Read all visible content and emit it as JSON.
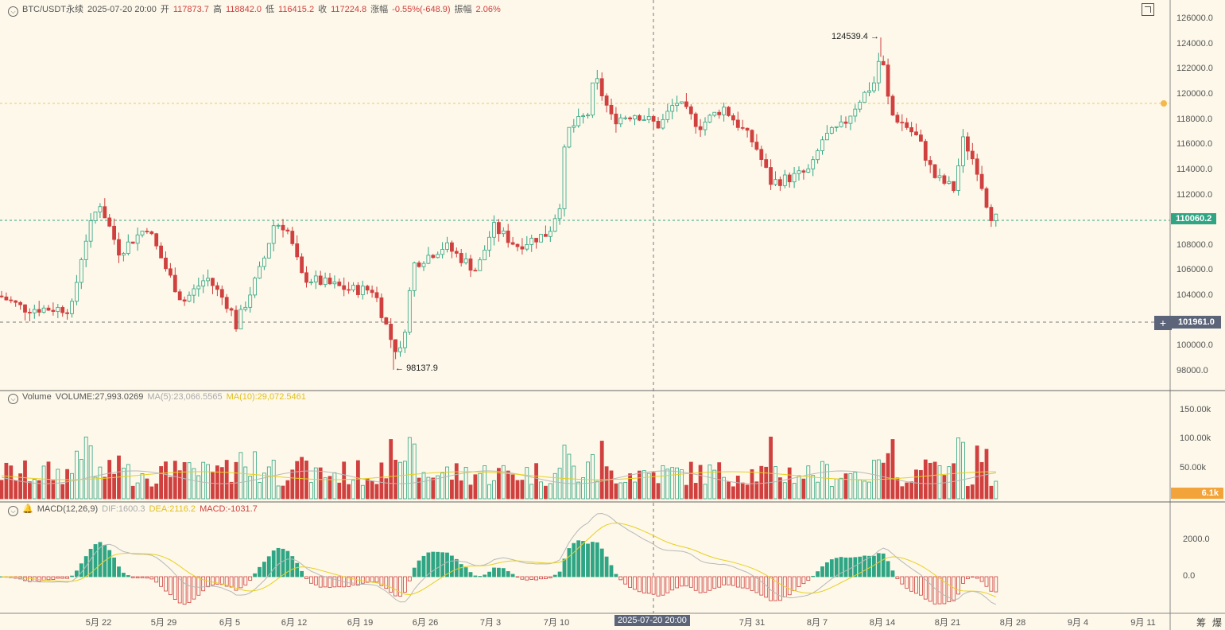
{
  "header": {
    "symbol": "BTC/USDT永续",
    "time": "2025-07-20 20:00",
    "open_label": "开",
    "open": "117873.7",
    "high_label": "高",
    "high": "118842.0",
    "low_label": "低",
    "low": "116415.2",
    "close_label": "收",
    "close": "117224.8",
    "change_label": "涨幅",
    "change": "-0.55%(-648.9)",
    "amp_label": "振幅",
    "amp": "2.06%"
  },
  "volume_header": {
    "name": "Volume",
    "volume": "VOLUME:27,993.0269",
    "ma5": "MA(5):23,066.5565",
    "ma10": "MA(10):29,072.5461"
  },
  "macd_header": {
    "name": "MACD(12,26,9)",
    "dif": "DIF:1600.3",
    "dea": "DEA:2116.2",
    "macd": "MACD:-1031.7"
  },
  "price_axis": [
    "126000.0",
    "124000.0",
    "122000.0",
    "120000.0",
    "118000.0",
    "116000.0",
    "114000.0",
    "112000.0",
    "110000.0",
    "108000.0",
    "106000.0",
    "104000.0",
    "102000.0",
    "100000.0",
    "98000.0"
  ],
  "volume_axis": [
    "150.00k",
    "100.00k",
    "50.00k"
  ],
  "macd_axis": [
    "2000.0",
    "0.0"
  ],
  "x_labels": [
    "5月 22",
    "5月 29",
    "6月 5",
    "6月 12",
    "6月 19",
    "6月 26",
    "7月 3",
    "7月 10",
    "7月 31",
    "8月 7",
    "8月 14",
    "8月 21",
    "8月 28",
    "9月 4",
    "9月 11"
  ],
  "crosshair_time": "2025-07-20 20:00",
  "last_price_tag": "110060.2",
  "cursor_price_tag": "101961.0",
  "volume_tag": "6.1k",
  "annotations": {
    "high": "124539.4",
    "low": "98137.9"
  },
  "bottom_buttons": [
    "筹",
    "爆"
  ],
  "colors": {
    "up": "#2fa584",
    "down": "#d0403f",
    "bg": "#fdf8ea",
    "ma_yellow": "#e8d020",
    "ma_grey": "#b8b8b8"
  },
  "icons": [
    "collapse-circle-icon",
    "bell-icon",
    "fullscreen-icon",
    "crosshair-plus-icon"
  ],
  "chart_data": {
    "type": "candlestick",
    "interval_note": "",
    "approx_anchors": [
      {
        "date": "5月 22",
        "close": 111500
      },
      {
        "date": "6月 5",
        "close": 102000
      },
      {
        "date": "6月 12",
        "close": 109500
      },
      {
        "date": "6月 22",
        "close": 99000
      },
      {
        "date": "7月 14",
        "close": 122000
      },
      {
        "date": "8月 14",
        "close": 123500
      },
      {
        "date": "8月 26",
        "close": 110060.2
      }
    ],
    "high": 124539.4,
    "low": 98137.9,
    "ylim": [
      97000,
      127000
    ]
  }
}
